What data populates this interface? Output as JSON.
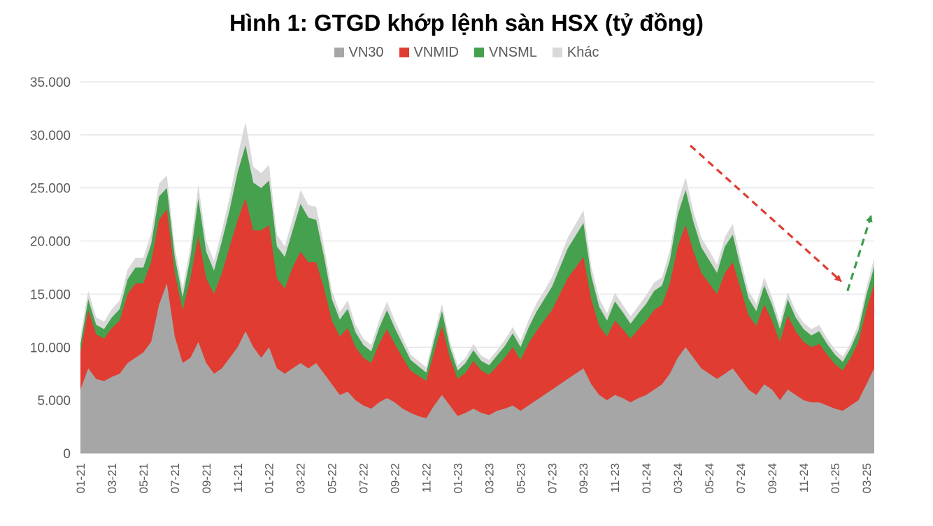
{
  "title": "Hình 1: GTGD khớp lệnh sàn HSX (tỷ đồng)",
  "chart_data": {
    "type": "area",
    "stacked": true,
    "title": "Hình 1: GTGD khớp lệnh sàn HSX (tỷ đồng)",
    "unit": "tỷ đồng",
    "ylim": [
      0,
      35000
    ],
    "grid": true,
    "legend_position": "top",
    "axis_text_color": "#595959",
    "gridline_color": "#d9d9d9",
    "y_ticks": [
      {
        "value": 0,
        "label": "0"
      },
      {
        "value": 5000,
        "label": "5.000"
      },
      {
        "value": 10000,
        "label": "10.000"
      },
      {
        "value": 15000,
        "label": "15.000"
      },
      {
        "value": 20000,
        "label": "20.000"
      },
      {
        "value": 25000,
        "label": "25.000"
      },
      {
        "value": 30000,
        "label": "30.000"
      },
      {
        "value": 35000,
        "label": "35.000"
      }
    ],
    "x_ticks": [
      {
        "label": "01-21",
        "month": 0
      },
      {
        "label": "03-21",
        "month": 2
      },
      {
        "label": "05-21",
        "month": 4
      },
      {
        "label": "07-21",
        "month": 6
      },
      {
        "label": "09-21",
        "month": 8
      },
      {
        "label": "11-21",
        "month": 10
      },
      {
        "label": "01-22",
        "month": 12
      },
      {
        "label": "03-22",
        "month": 14
      },
      {
        "label": "05-22",
        "month": 16
      },
      {
        "label": "07-22",
        "month": 18
      },
      {
        "label": "09-22",
        "month": 20
      },
      {
        "label": "11-22",
        "month": 22
      },
      {
        "label": "01-23",
        "month": 24
      },
      {
        "label": "03-23",
        "month": 26
      },
      {
        "label": "05-23",
        "month": 28
      },
      {
        "label": "07-23",
        "month": 30
      },
      {
        "label": "09-23",
        "month": 32
      },
      {
        "label": "11-23",
        "month": 34
      },
      {
        "label": "01-24",
        "month": 36
      },
      {
        "label": "03-24",
        "month": 38
      },
      {
        "label": "05-24",
        "month": 40
      },
      {
        "label": "07-24",
        "month": 42
      },
      {
        "label": "09-24",
        "month": 44
      },
      {
        "label": "11-24",
        "month": 46
      },
      {
        "label": "01-25",
        "month": 48
      },
      {
        "label": "03-25",
        "month": 50
      }
    ],
    "points_per_month": 2,
    "series": [
      {
        "name": "VN30",
        "color": "#a6a6a6",
        "values": [
          6000,
          8000,
          7000,
          6800,
          7200,
          7500,
          8500,
          9000,
          9500,
          10500,
          14000,
          16000,
          11000,
          8500,
          9000,
          10500,
          8500,
          7500,
          8000,
          9000,
          10000,
          11500,
          10000,
          9000,
          10000,
          8000,
          7500,
          8000,
          8500,
          8000,
          8500,
          7500,
          6500,
          5500,
          5800,
          5000,
          4500,
          4200,
          4800,
          5200,
          4800,
          4200,
          3800,
          3500,
          3300,
          4500,
          5500,
          4500,
          3500,
          3800,
          4200,
          3800,
          3600,
          4000,
          4200,
          4500,
          4000,
          4500,
          5000,
          5500,
          6000,
          6500,
          7000,
          7500,
          8000,
          6500,
          5500,
          5000,
          5500,
          5200,
          4800,
          5200,
          5500,
          6000,
          6500,
          7500,
          9000,
          10000,
          9000,
          8000,
          7500,
          7000,
          7500,
          8000,
          7000,
          6000,
          5500,
          6500,
          6000,
          5000,
          6000,
          5500,
          5000,
          4800,
          4800,
          4500,
          4200,
          4000,
          4500,
          5000,
          6500,
          8000
        ]
      },
      {
        "name": "VNMID",
        "color": "#e03c31",
        "values": [
          3500,
          5500,
          4200,
          4000,
          4600,
          5000,
          6500,
          7000,
          6500,
          7500,
          8000,
          7000,
          6000,
          5000,
          7500,
          10000,
          8000,
          7500,
          9000,
          10500,
          12000,
          12500,
          11000,
          12000,
          11500,
          8500,
          8000,
          9500,
          10500,
          10000,
          9500,
          8000,
          6000,
          5500,
          6000,
          5000,
          4500,
          4300,
          5500,
          6500,
          5500,
          4800,
          4000,
          3800,
          3500,
          5000,
          6500,
          4500,
          3500,
          3800,
          4500,
          4000,
          3800,
          4200,
          4800,
          5500,
          4800,
          5800,
          6500,
          7000,
          7500,
          8500,
          9500,
          10000,
          10500,
          8000,
          6500,
          6000,
          7000,
          6500,
          6000,
          6500,
          7000,
          7500,
          7500,
          8500,
          10500,
          11500,
          10000,
          9000,
          8500,
          8000,
          9500,
          10000,
          8500,
          7000,
          6500,
          7500,
          6500,
          5500,
          7000,
          6000,
          5500,
          5200,
          5500,
          4800,
          4200,
          3800,
          4500,
          5500,
          7000,
          8000
        ]
      },
      {
        "name": "VNSML",
        "color": "#46a14f",
        "values": [
          800,
          1000,
          900,
          900,
          1000,
          1100,
          1400,
          1500,
          1500,
          1700,
          2200,
          2000,
          1500,
          1200,
          2000,
          3500,
          2500,
          2200,
          3000,
          3500,
          4500,
          5000,
          4500,
          4000,
          4200,
          3000,
          3000,
          3500,
          4500,
          4200,
          4000,
          3000,
          2000,
          1600,
          1800,
          1400,
          1200,
          1100,
          1500,
          1800,
          1500,
          1300,
          1000,
          900,
          800,
          1100,
          1400,
          1000,
          800,
          900,
          1000,
          900,
          900,
          1000,
          1100,
          1300,
          1200,
          1500,
          1800,
          2000,
          2200,
          2500,
          2800,
          3000,
          3200,
          2200,
          1800,
          1500,
          1800,
          1600,
          1400,
          1500,
          1600,
          1800,
          1800,
          2200,
          3000,
          3300,
          2800,
          2400,
          2200,
          2000,
          2500,
          2600,
          2000,
          1600,
          1400,
          1800,
          1500,
          1200,
          1500,
          1300,
          1200,
          1100,
          1200,
          1000,
          900,
          800,
          900,
          1100,
          1400,
          1600
        ]
      },
      {
        "name": "Khác",
        "color": "#d9d9d9",
        "values": [
          700,
          800,
          700,
          700,
          800,
          800,
          900,
          900,
          900,
          1000,
          1200,
          1200,
          900,
          800,
          1000,
          1300,
          1000,
          900,
          1000,
          1200,
          1500,
          2200,
          1500,
          1400,
          1500,
          1100,
          1000,
          1100,
          1300,
          1200,
          1200,
          1000,
          800,
          700,
          800,
          700,
          600,
          600,
          700,
          800,
          700,
          600,
          500,
          500,
          500,
          600,
          700,
          600,
          500,
          500,
          600,
          500,
          500,
          500,
          600,
          600,
          600,
          700,
          800,
          800,
          900,
          900,
          1000,
          1100,
          1200,
          900,
          800,
          700,
          800,
          700,
          700,
          700,
          800,
          800,
          800,
          900,
          1100,
          1200,
          1000,
          900,
          900,
          800,
          900,
          1000,
          800,
          700,
          700,
          800,
          700,
          600,
          700,
          600,
          600,
          600,
          600,
          500,
          500,
          500,
          500,
          600,
          700,
          800
        ]
      }
    ],
    "annotations": [
      {
        "type": "arrow",
        "name": "downtrend-arrow",
        "color": "#e03c31",
        "dashed": true,
        "from": {
          "month": 38.8,
          "value": 29000
        },
        "to": {
          "month": 48.4,
          "value": 16200
        }
      },
      {
        "type": "arrow",
        "name": "uptrend-arrow",
        "color": "#3d9c4c",
        "dashed": true,
        "from": {
          "month": 48.8,
          "value": 15300
        },
        "to": {
          "month": 50.3,
          "value": 22400
        }
      }
    ]
  }
}
